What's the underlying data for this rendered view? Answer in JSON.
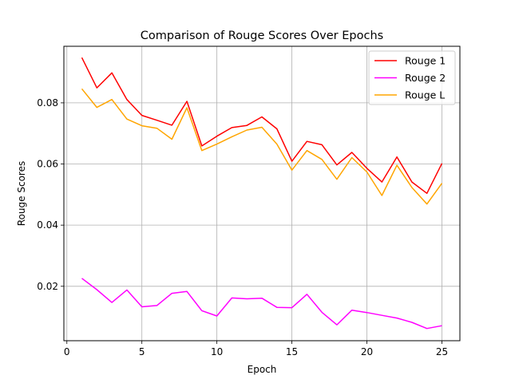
{
  "chart_data": {
    "type": "line",
    "title": "Comparison of Rouge Scores Over Epochs",
    "xlabel": "Epoch",
    "ylabel": "Rouge Scores",
    "xlim": [
      -0.2,
      26.2
    ],
    "ylim": [
      0.0022,
      0.0985
    ],
    "xticks": [
      0,
      5,
      10,
      15,
      20,
      25
    ],
    "yticks": [
      0.02,
      0.04,
      0.06,
      0.08
    ],
    "ytick_labels": [
      "0.02",
      "0.04",
      "0.06",
      "0.08"
    ],
    "grid": true,
    "legend_position": "top-right",
    "x": [
      1,
      2,
      3,
      4,
      5,
      6,
      7,
      8,
      9,
      10,
      11,
      12,
      13,
      14,
      15,
      16,
      17,
      18,
      19,
      20,
      21,
      22,
      23,
      24,
      25
    ],
    "series": [
      {
        "name": "Rouge 1",
        "color": "#ff0000",
        "values": [
          0.0948,
          0.0849,
          0.0898,
          0.0811,
          0.0759,
          0.0743,
          0.0727,
          0.0805,
          0.0659,
          0.0691,
          0.0719,
          0.0726,
          0.0754,
          0.0715,
          0.0609,
          0.0674,
          0.0663,
          0.0597,
          0.0638,
          0.0586,
          0.0541,
          0.0623,
          0.0541,
          0.0504,
          0.0602
        ]
      },
      {
        "name": "Rouge 2",
        "color": "#ff00ff",
        "values": [
          0.0226,
          0.0189,
          0.0147,
          0.0188,
          0.0133,
          0.0137,
          0.0177,
          0.0183,
          0.012,
          0.0103,
          0.0162,
          0.0159,
          0.0161,
          0.0131,
          0.013,
          0.0174,
          0.0115,
          0.0074,
          0.0122,
          0.0114,
          0.0105,
          0.0096,
          0.0082,
          0.0062,
          0.0071
        ]
      },
      {
        "name": "Rouge L",
        "color": "#ffa500",
        "values": [
          0.0846,
          0.0785,
          0.0811,
          0.0747,
          0.0725,
          0.0717,
          0.0681,
          0.0784,
          0.0644,
          0.0665,
          0.0689,
          0.0711,
          0.072,
          0.0665,
          0.058,
          0.0644,
          0.0615,
          0.055,
          0.0621,
          0.0574,
          0.0497,
          0.0596,
          0.0523,
          0.0469,
          0.0537
        ]
      }
    ]
  }
}
